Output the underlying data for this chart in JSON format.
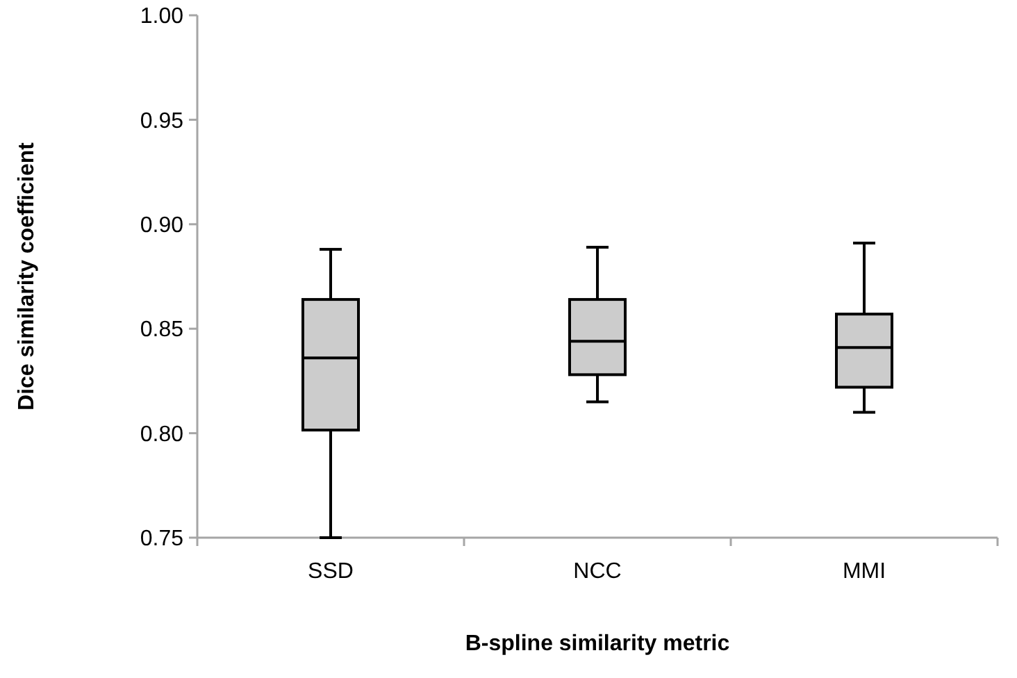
{
  "chart_data": {
    "type": "box",
    "xlabel": "B-spline similarity metric",
    "ylabel": "Dice similarity coefficient",
    "categories": [
      "SSD",
      "NCC",
      "MMI"
    ],
    "boxes": [
      {
        "low": 0.75,
        "q1": 0.8015,
        "median": 0.836,
        "q3": 0.864,
        "high": 0.888
      },
      {
        "low": 0.815,
        "q1": 0.828,
        "median": 0.844,
        "q3": 0.864,
        "high": 0.889
      },
      {
        "low": 0.81,
        "q1": 0.822,
        "median": 0.841,
        "q3": 0.857,
        "high": 0.891
      }
    ],
    "color": "#cccccc",
    "ylim": [
      0.75,
      1.0
    ],
    "yticks": [
      {
        "value": 0.75,
        "label": "0.75"
      },
      {
        "value": 0.8,
        "label": "0.80"
      },
      {
        "value": 0.85,
        "label": "0.85"
      },
      {
        "value": 0.9,
        "label": "0.90"
      },
      {
        "value": 0.95,
        "label": "0.95"
      },
      {
        "value": 1.0,
        "label": "1.00"
      }
    ]
  }
}
